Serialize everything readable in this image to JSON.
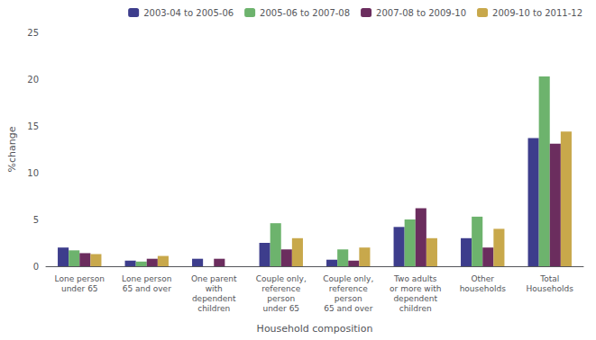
{
  "chart_data": {
    "type": "bar",
    "xlabel": "Household composition",
    "ylabel": "%change",
    "categories": [
      "Lone person\nunder 65",
      "Lone person\n65 and over",
      "One parent\nwith\ndependent\nchildren",
      "Couple only,\nreference\nperson\nunder 65",
      "Couple only,\nreference\nperson\n65 and over",
      "Two adults\nor more with\ndependent\nchildren",
      "Other\nhouseholds",
      "Total\nHouseholds"
    ],
    "series": [
      {
        "name": "2003-04 to 2005-06",
        "color": "#3d3d8c",
        "values": [
          2.0,
          0.6,
          0.8,
          2.5,
          0.7,
          4.2,
          3.0,
          13.7
        ]
      },
      {
        "name": "2005-06 to 2007-08",
        "color": "#6db36d",
        "values": [
          1.7,
          0.5,
          0.0,
          4.6,
          1.8,
          5.0,
          5.3,
          20.3
        ]
      },
      {
        "name": "2007-08 to 2009-10",
        "color": "#6b2d5e",
        "values": [
          1.4,
          0.8,
          0.8,
          1.8,
          0.6,
          6.2,
          2.0,
          13.1
        ]
      },
      {
        "name": "2009-10 to 2011-12",
        "color": "#c8a84b",
        "values": [
          1.3,
          1.1,
          0.0,
          3.0,
          2.0,
          3.0,
          4.0,
          14.4
        ]
      }
    ],
    "ylim": [
      0,
      25
    ],
    "yticks": [
      0,
      5,
      10,
      15,
      20,
      25
    ],
    "grid": false,
    "legend": "upper right"
  }
}
